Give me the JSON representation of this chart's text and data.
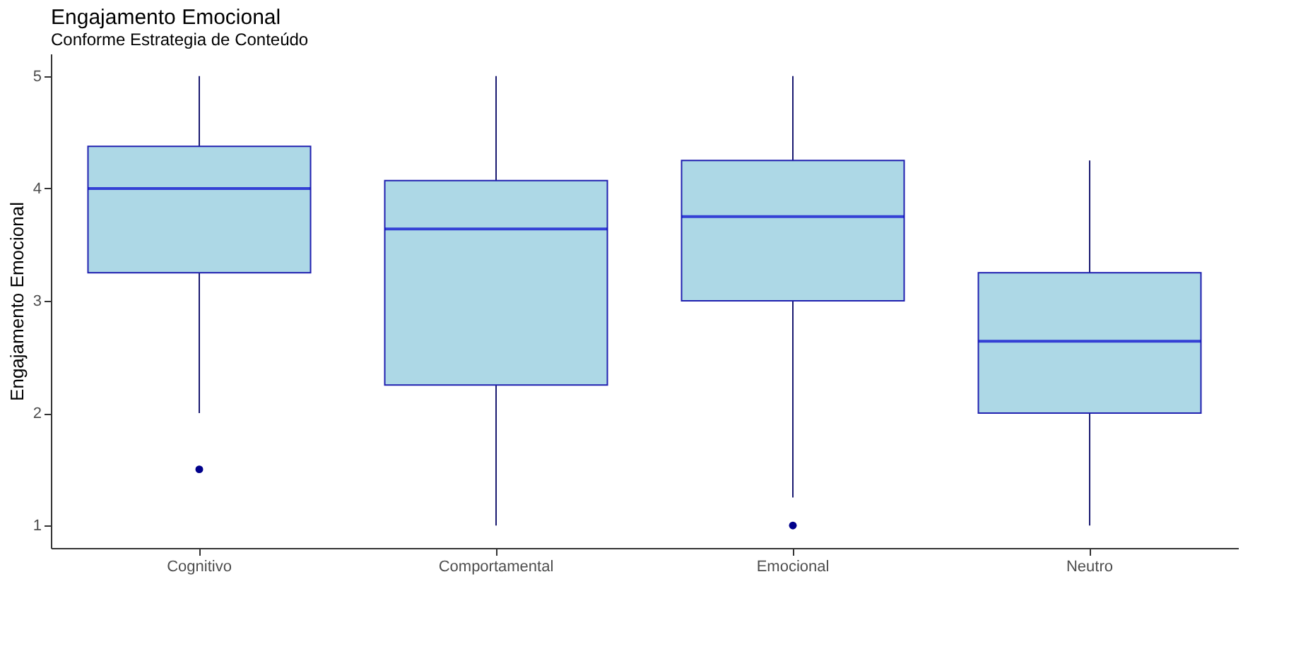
{
  "chart_data": {
    "type": "box",
    "title": "Engajamento Emocional",
    "subtitle": "Conforme Estrategia de Conteúdo",
    "ylabel": "Engajamento Emocional",
    "categories": [
      "Cognitivo",
      "Comportamental",
      "Emocional",
      "Neutro"
    ],
    "boxes": [
      {
        "low": 2.0,
        "q1": 3.25,
        "median": 4.0,
        "q3": 4.375,
        "high": 5.0,
        "outliers": [
          1.5
        ]
      },
      {
        "low": 1.0,
        "q1": 2.25,
        "median": 3.64,
        "q3": 4.07,
        "high": 5.0
      },
      {
        "low": 1.25,
        "q1": 3.0,
        "median": 3.75,
        "q3": 4.25,
        "high": 5.0,
        "outliers": [
          1.0
        ]
      },
      {
        "low": 1.0,
        "q1": 2.0,
        "median": 2.64,
        "q3": 3.25,
        "high": 4.25
      }
    ],
    "color": "#add8e6",
    "ylim": [
      0.8,
      5.2
    ],
    "yticks": [
      1,
      2,
      3,
      4,
      5
    ],
    "grid": false
  }
}
